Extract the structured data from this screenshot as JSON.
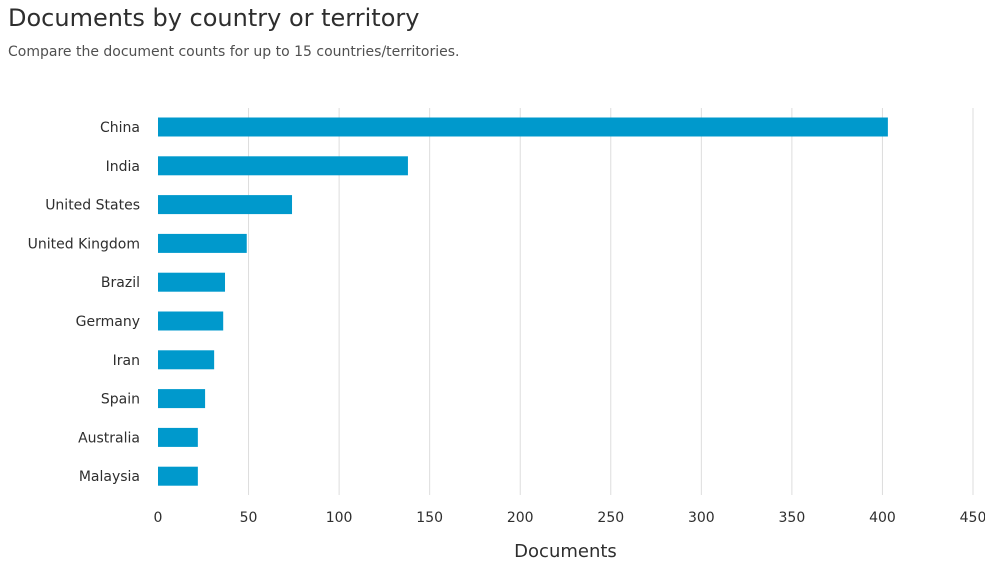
{
  "header": {
    "title": "Documents by country or territory",
    "subtitle": "Compare the document counts for up to 15 countries/territories."
  },
  "colors": {
    "bar": "#0099cc",
    "grid": "#dddddd",
    "text": "#2e2e2e"
  },
  "chart_data": {
    "type": "bar",
    "orientation": "horizontal",
    "title": "Documents by country or territory",
    "subtitle": "Compare the document counts for up to 15 countries/territories.",
    "xlabel": "Documents",
    "ylabel": "",
    "categories": [
      "China",
      "India",
      "United States",
      "United Kingdom",
      "Brazil",
      "Germany",
      "Iran",
      "Spain",
      "Australia",
      "Malaysia"
    ],
    "values": [
      403,
      138,
      74,
      49,
      37,
      36,
      31,
      26,
      22,
      22
    ],
    "xlim": [
      0,
      450
    ],
    "xticks": [
      0,
      50,
      100,
      150,
      200,
      250,
      300,
      350,
      400,
      450
    ],
    "grid": "vertical"
  }
}
